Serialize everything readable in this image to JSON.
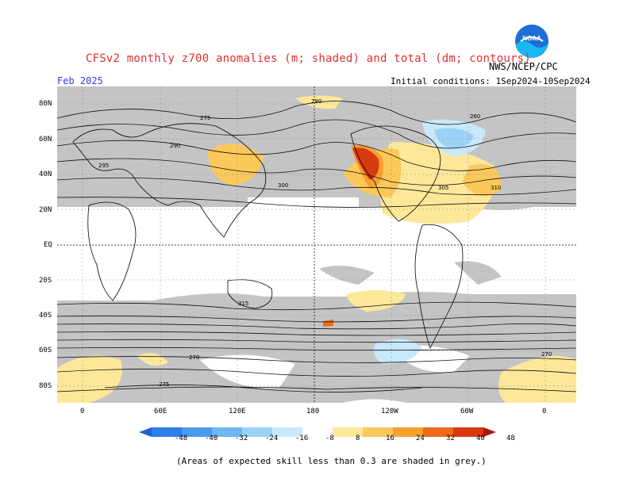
{
  "header": {
    "title": "CFSv2 monthly z700 anomalies (m; shaded) and total (dm; contours)",
    "agency": "NWS/NCEP/CPC",
    "period": "Feb 2025",
    "initial_conditions": "Initial conditions: 1Sep2024-10Sep2024",
    "logo_text": "NOAA"
  },
  "axes": {
    "lat_labels": [
      "80N",
      "60N",
      "40N",
      "20N",
      "EQ",
      "20S",
      "40S",
      "60S",
      "80S"
    ],
    "lon_labels": [
      "0",
      "60E",
      "120E",
      "180",
      "120W",
      "60W",
      "0"
    ]
  },
  "contour_labels": [
    "280",
    "290",
    "295",
    "300",
    "305",
    "310",
    "315",
    "275",
    "270",
    "260"
  ],
  "colorbar": {
    "ticks": [
      "-48",
      "-40",
      "-32",
      "-24",
      "-16",
      "-8",
      "8",
      "16",
      "24",
      "32",
      "40",
      "48"
    ],
    "colors": [
      "#1f5fd6",
      "#2e7fe6",
      "#4a9bee",
      "#6fb7f3",
      "#9dd2f7",
      "#c8e8fb",
      "#ffffff",
      "#fde89a",
      "#fbc85a",
      "#f7a030",
      "#ef6a18",
      "#d83a10",
      "#a81810"
    ]
  },
  "footnote": "(Areas of expected skill less than 0.3 are shaded in grey.)",
  "colors": {
    "grey_shade": "#c4c4c4",
    "title": "#e03030",
    "month": "#3a3adf"
  }
}
